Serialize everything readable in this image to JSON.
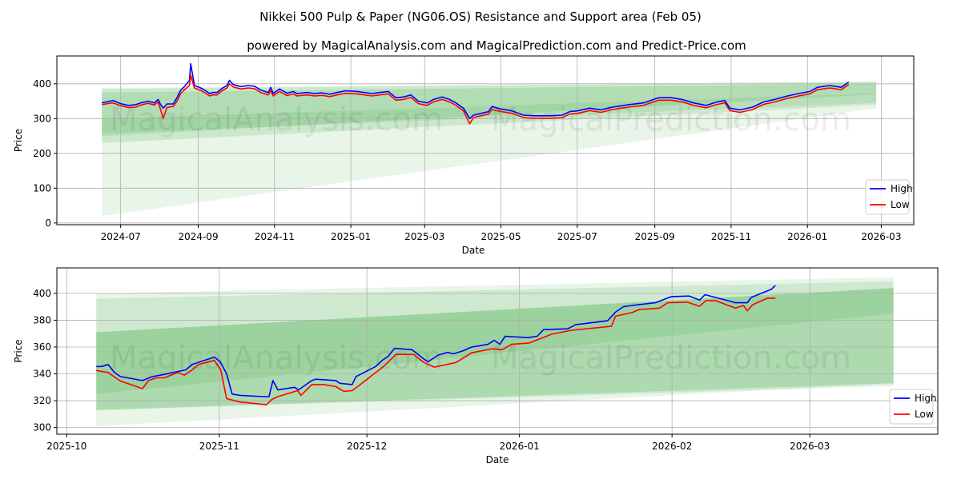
{
  "title": "Nikkei 500 Pulp & Paper (NG06.OS) Resistance and Support area (Feb 05)",
  "subtitle": "powered by MagicalAnalysis.com and MagicalPrediction.com and Predict-Price.com",
  "watermarks": [
    "MagicalAnalysis.com",
    "MagicalPrediction.com"
  ],
  "colors": {
    "high": "#0000ff",
    "low": "#ff0000",
    "band": "#4caf50"
  },
  "chart_data": [
    {
      "type": "line",
      "xlabel": "Date",
      "ylabel": "Price",
      "x_origin": "2024-07-01",
      "x_unit": "days since origin",
      "xlim_days": [
        -51,
        634
      ],
      "ylim": [
        -5,
        480
      ],
      "grid": true,
      "legend": "bottom-right",
      "xticks": [
        {
          "day": 0,
          "label": "2024-07"
        },
        {
          "day": 62,
          "label": "2024-09"
        },
        {
          "day": 123,
          "label": "2024-11"
        },
        {
          "day": 184,
          "label": "2025-01"
        },
        {
          "day": 243,
          "label": "2025-03"
        },
        {
          "day": 304,
          "label": "2025-05"
        },
        {
          "day": 365,
          "label": "2025-07"
        },
        {
          "day": 427,
          "label": "2025-09"
        },
        {
          "day": 488,
          "label": "2025-11"
        },
        {
          "day": 549,
          "label": "2026-01"
        },
        {
          "day": 608,
          "label": "2026-03"
        }
      ],
      "yticks": [
        0,
        100,
        200,
        300,
        400
      ],
      "bands": [
        {
          "x0": -15,
          "x1": 604,
          "upper": [
            388,
            408
          ],
          "lower": [
            20,
            330
          ],
          "opacity": 0.13
        },
        {
          "x0": -15,
          "x1": 604,
          "upper": [
            385,
            405
          ],
          "lower": [
            230,
            340
          ],
          "opacity": 0.18
        },
        {
          "x0": -15,
          "x1": 604,
          "upper": [
            375,
            400
          ],
          "lower": [
            250,
            370
          ],
          "opacity": 0.2
        },
        {
          "x0": -15,
          "x1": 604,
          "upper": [
            300,
            372
          ],
          "lower": [
            258,
            345
          ],
          "opacity": 0.15
        }
      ],
      "series": [
        {
          "name": "High",
          "days": [
            -15,
            -9,
            -6,
            0,
            6,
            12,
            17,
            22,
            27,
            30,
            32,
            34,
            37,
            42,
            45,
            48,
            51,
            55,
            56,
            59,
            64,
            68,
            71,
            74,
            77,
            81,
            85,
            87,
            90,
            96,
            102,
            107,
            112,
            118,
            120,
            122,
            127,
            133,
            138,
            141,
            149,
            155,
            161,
            167,
            173,
            180,
            189,
            201,
            207,
            214,
            220,
            226,
            232,
            238,
            245,
            250,
            257,
            263,
            268,
            274,
            279,
            282,
            288,
            294,
            297,
            303,
            313,
            322,
            331,
            344,
            353,
            359,
            365,
            375,
            384,
            393,
            406,
            418,
            430,
            440,
            449,
            458,
            468,
            477,
            483,
            487,
            495,
            505,
            514,
            523,
            533,
            542,
            551,
            557,
            567,
            576,
            582
          ],
          "values": [
            345,
            350,
            352,
            343,
            338,
            340,
            346,
            350,
            345,
            355,
            340,
            330,
            342,
            342,
            360,
            382,
            392,
            410,
            458,
            395,
            388,
            380,
            372,
            375,
            375,
            387,
            395,
            410,
            398,
            392,
            395,
            393,
            382,
            375,
            390,
            372,
            385,
            373,
            378,
            372,
            375,
            372,
            374,
            370,
            375,
            380,
            378,
            372,
            375,
            378,
            360,
            362,
            368,
            350,
            345,
            355,
            362,
            355,
            345,
            330,
            300,
            310,
            315,
            320,
            335,
            328,
            322,
            310,
            308,
            308,
            310,
            320,
            322,
            330,
            325,
            333,
            340,
            345,
            360,
            360,
            355,
            345,
            338,
            348,
            352,
            330,
            325,
            333,
            348,
            355,
            365,
            372,
            378,
            390,
            395,
            390,
            405
          ]
        },
        {
          "name": "Low",
          "days": [
            -15,
            -9,
            -6,
            0,
            6,
            12,
            17,
            22,
            27,
            30,
            32,
            34,
            37,
            42,
            45,
            48,
            51,
            55,
            56,
            59,
            64,
            68,
            71,
            74,
            77,
            81,
            85,
            87,
            90,
            96,
            102,
            107,
            112,
            118,
            120,
            122,
            127,
            133,
            138,
            141,
            149,
            155,
            161,
            167,
            173,
            180,
            189,
            201,
            207,
            214,
            220,
            226,
            232,
            238,
            245,
            250,
            257,
            263,
            268,
            274,
            279,
            282,
            288,
            294,
            297,
            303,
            313,
            322,
            331,
            344,
            353,
            359,
            365,
            375,
            384,
            393,
            406,
            418,
            430,
            440,
            449,
            458,
            468,
            477,
            483,
            487,
            495,
            505,
            514,
            523,
            533,
            542,
            551,
            557,
            567,
            576,
            582
          ],
          "values": [
            340,
            344,
            345,
            337,
            332,
            333,
            340,
            344,
            339,
            348,
            325,
            300,
            332,
            335,
            350,
            372,
            383,
            395,
            425,
            388,
            381,
            373,
            365,
            368,
            368,
            380,
            388,
            400,
            391,
            385,
            388,
            386,
            375,
            368,
            380,
            365,
            378,
            366,
            371,
            365,
            368,
            365,
            367,
            363,
            368,
            373,
            371,
            365,
            368,
            371,
            353,
            355,
            361,
            343,
            338,
            348,
            355,
            348,
            338,
            322,
            285,
            303,
            308,
            313,
            326,
            321,
            315,
            303,
            301,
            301,
            303,
            313,
            315,
            323,
            318,
            326,
            333,
            338,
            353,
            353,
            348,
            338,
            331,
            341,
            345,
            323,
            318,
            326,
            341,
            348,
            358,
            365,
            371,
            383,
            388,
            383,
            398
          ]
        }
      ]
    },
    {
      "type": "line",
      "xlabel": "Date",
      "ylabel": "Price",
      "x_origin": "2025-10-01",
      "x_unit": "days since origin",
      "xlim_days": [
        -2,
        177
      ],
      "ylim": [
        295,
        419
      ],
      "grid": true,
      "legend": "bottom-right",
      "xticks": [
        {
          "day": 0,
          "label": "2025-10"
        },
        {
          "day": 31,
          "label": "2025-11"
        },
        {
          "day": 61,
          "label": "2025-12"
        },
        {
          "day": 92,
          "label": "2026-01"
        },
        {
          "day": 123,
          "label": "2026-02"
        },
        {
          "day": 151,
          "label": "2026-03"
        }
      ],
      "yticks": [
        300,
        320,
        340,
        360,
        380,
        400
      ],
      "bands": [
        {
          "x0": 6,
          "x1": 168,
          "upper": [
            400,
            412
          ],
          "lower": [
            301,
            333
          ],
          "opacity": 0.13
        },
        {
          "x0": 6,
          "x1": 168,
          "upper": [
            396,
            409
          ],
          "lower": [
            313,
            331
          ],
          "opacity": 0.16
        },
        {
          "x0": 6,
          "x1": 168,
          "upper": [
            371,
            404
          ],
          "lower": [
            313,
            333
          ],
          "opacity": 0.25
        },
        {
          "x0": 6,
          "x1": 168,
          "upper": [
            371,
            404
          ],
          "lower": [
            325,
            385
          ],
          "opacity": 0.18
        }
      ],
      "series": [
        {
          "name": "High",
          "days": [
            6,
            7.1,
            8.4,
            9.7,
            10.9,
            15.4,
            17.4,
            19,
            24.2,
            25.5,
            30,
            31.2,
            32.5,
            33.6,
            35.2,
            40.1,
            41.1,
            41.9,
            42.9,
            46.3,
            47.1,
            49.8,
            50.6,
            54.7,
            55.5,
            58,
            58.8,
            62.8,
            64.1,
            65.3,
            66.6,
            70.1,
            70.9,
            72.6,
            73.4,
            75.5,
            77.4,
            78.6,
            80.4,
            82.3,
            85.6,
            86.9,
            88,
            89.1,
            93.7,
            95.6,
            96.9,
            101.8,
            103.4,
            109.9,
            111.5,
            113.1,
            114.8,
            119.6,
            122.9,
            126.5,
            128.6,
            129.7,
            134.3,
            135.9,
            138.3,
            139.1,
            143.2,
            144
          ],
          "values": [
            345.5,
            345.5,
            347,
            341,
            338,
            335,
            338,
            339,
            343,
            347,
            352.5,
            349,
            340,
            325,
            324,
            323,
            323,
            335,
            328,
            330,
            328,
            335,
            336,
            335,
            333,
            332,
            338,
            345.5,
            350,
            353,
            359,
            358,
            356,
            351,
            349,
            354,
            356,
            355,
            357,
            360,
            362,
            365,
            362,
            368,
            367,
            368,
            373,
            373.6,
            376.6,
            379.6,
            386,
            390,
            391,
            393,
            397.6,
            398,
            395,
            399,
            394.6,
            393,
            393,
            397,
            403,
            406
          ]
        },
        {
          "name": "Low",
          "days": [
            6,
            8.4,
            10.9,
            15.4,
            16.6,
            18.2,
            19.8,
            22.6,
            23.9,
            25.5,
            26.8,
            30,
            31.3,
            32.5,
            35.2,
            40.6,
            41.7,
            42.9,
            46.9,
            47.6,
            49.8,
            52.3,
            54.7,
            56.3,
            58,
            59.1,
            64.4,
            66.9,
            70.5,
            71.3,
            72.6,
            74.7,
            79.1,
            82.3,
            86.4,
            88.5,
            90.4,
            94,
            98.5,
            102.6,
            110.7,
            111.5,
            114.8,
            116.4,
            120.5,
            122.1,
            126.1,
            128.6,
            129.9,
            131.8,
            135.9,
            137.5,
            138.3,
            139.4,
            142.4,
            144
          ],
          "values": [
            342.5,
            341,
            334.7,
            329,
            335,
            337,
            337,
            341,
            339,
            343,
            347,
            350,
            343,
            321.5,
            319,
            317,
            321,
            323,
            327.5,
            324,
            332,
            332,
            330.5,
            327,
            327.5,
            330.5,
            345.5,
            354.5,
            354.5,
            352,
            348.5,
            345,
            348.5,
            355.7,
            358.7,
            358,
            362,
            363,
            369.5,
            372.5,
            375.5,
            383,
            385.6,
            388,
            389,
            393,
            393.4,
            390.4,
            394.6,
            394.6,
            389,
            391,
            387,
            391.6,
            396.4,
            396.4
          ]
        }
      ]
    }
  ]
}
